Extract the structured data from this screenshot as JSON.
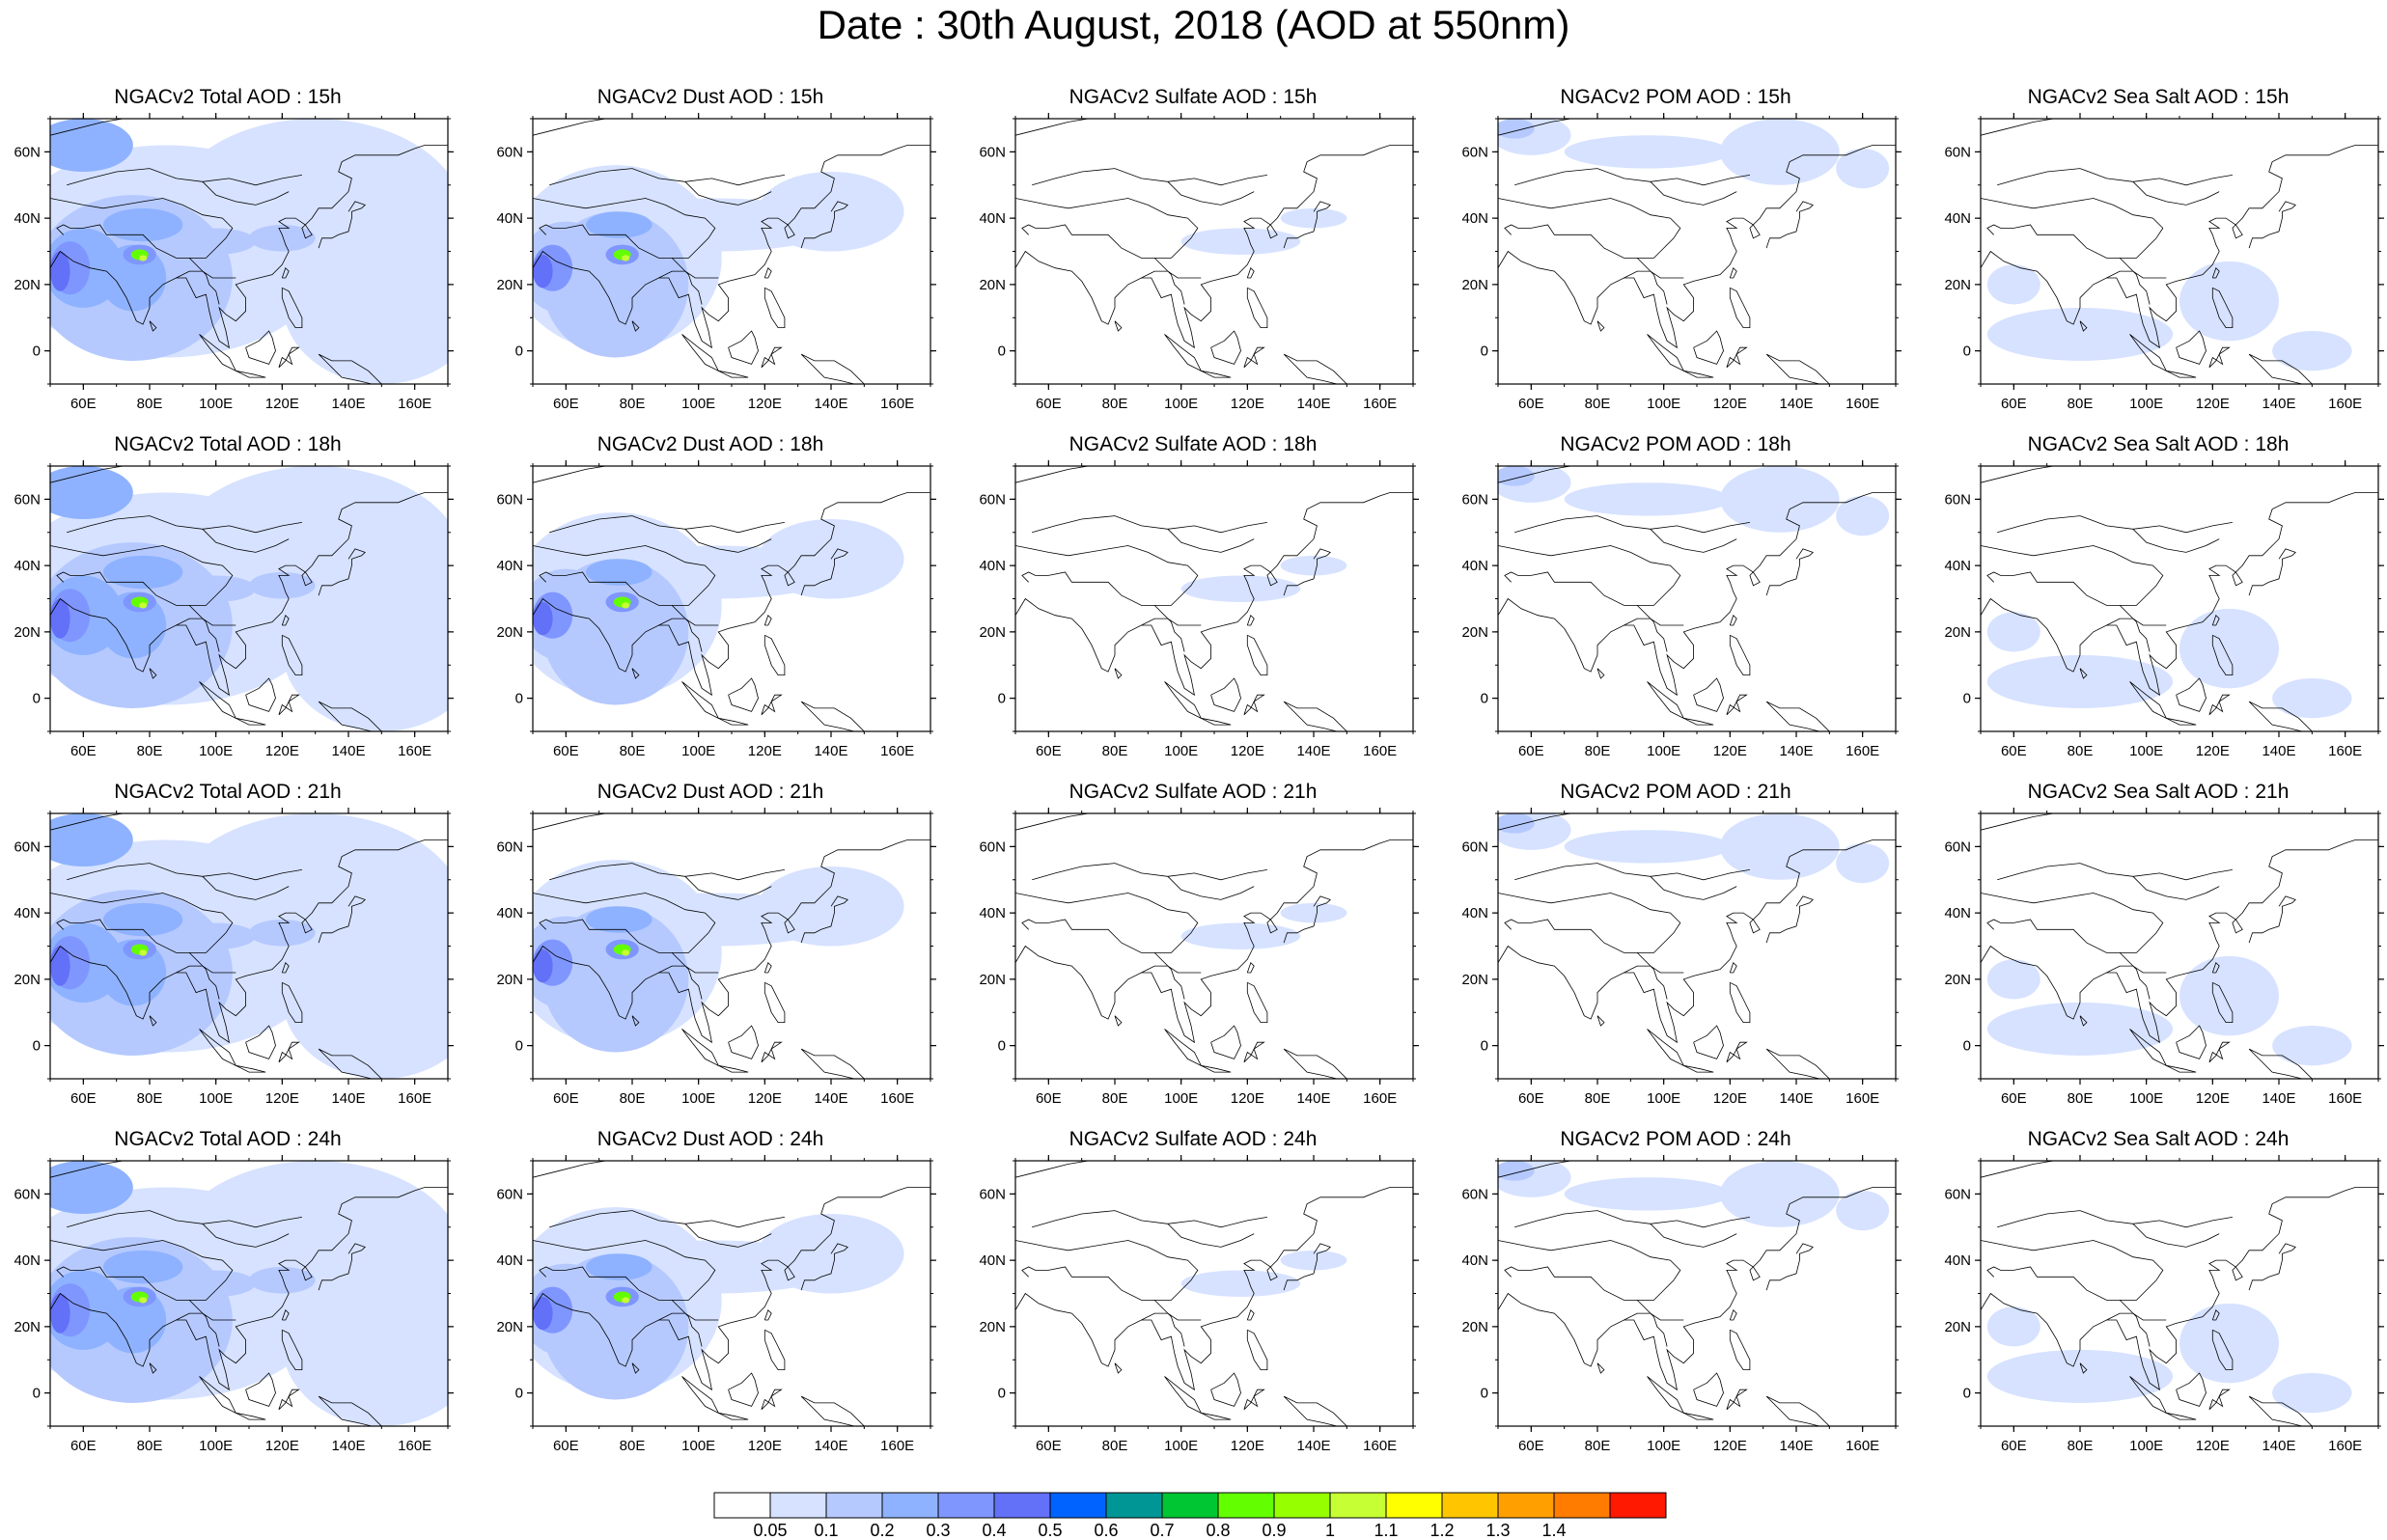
{
  "title": "Date : 30th August, 2018 (AOD at 550nm)",
  "lon_ticks": [
    60,
    80,
    100,
    120,
    140,
    160
  ],
  "lon_labels": [
    "60E",
    "80E",
    "100E",
    "120E",
    "140E",
    "160E"
  ],
  "lat_ticks": [
    60,
    40,
    20,
    0
  ],
  "lat_labels": [
    "60N",
    "40N",
    "20N",
    "0"
  ],
  "lon_range": [
    50,
    170
  ],
  "lat_range": [
    -10,
    70
  ],
  "species": [
    "total",
    "dust",
    "sulfate",
    "pom",
    "seasalt"
  ],
  "times": [
    "15h",
    "18h",
    "21h",
    "24h"
  ],
  "panel_titles": [
    [
      "NGACv2 Total AOD : 15h",
      "NGACv2 Dust AOD : 15h",
      "NGACv2 Sulfate AOD : 15h",
      "NGACv2 POM AOD : 15h",
      "NGACv2 Sea Salt AOD : 15h"
    ],
    [
      "NGACv2 Total AOD : 18h",
      "NGACv2 Dust AOD : 18h",
      "NGACv2 Sulfate AOD : 18h",
      "NGACv2 POM AOD : 18h",
      "NGACv2 Sea Salt AOD : 18h"
    ],
    [
      "NGACv2 Total AOD : 21h",
      "NGACv2 Dust AOD : 21h",
      "NGACv2 Sulfate AOD : 21h",
      "NGACv2 POM AOD : 21h",
      "NGACv2 Sea Salt AOD : 21h"
    ],
    [
      "NGACv2 Total AOD : 24h",
      "NGACv2 Dust AOD : 24h",
      "NGACv2 Sulfate AOD : 24h",
      "NGACv2 POM AOD : 24h",
      "NGACv2 Sea Salt  AOD : 24h"
    ]
  ],
  "colorbar": {
    "labels": [
      "0.05",
      "0.1",
      "0.2",
      "0.3",
      "0.4",
      "0.5",
      "0.6",
      "0.7",
      "0.8",
      "0.9",
      "1",
      "1.1",
      "1.2",
      "1.3",
      "1.4"
    ],
    "colors": [
      "#ffffff",
      "#d6e2ff",
      "#b5c9ff",
      "#8eb2ff",
      "#7f96ff",
      "#6370f8",
      "#0063ff",
      "#009696",
      "#00c633",
      "#63ff00",
      "#96ff00",
      "#c6ff33",
      "#ffff00",
      "#ffc600",
      "#ffa000",
      "#ff7c00",
      "#ff1900"
    ]
  },
  "blob_colors": [
    "#ffffff",
    "#d6e2ff",
    "#b5c9ff",
    "#8eb2ff",
    "#7f96ff",
    "#6370f8",
    "#63ff00",
    "#c6ff33"
  ],
  "fields": {
    "total": [
      {
        "lon": 85,
        "lat": 30,
        "rx": 50,
        "ry": 32,
        "level": 1
      },
      {
        "lon": 130,
        "lat": 40,
        "rx": 45,
        "ry": 30,
        "level": 1
      },
      {
        "lon": 150,
        "lat": 15,
        "rx": 30,
        "ry": 25,
        "level": 1
      },
      {
        "lon": 60,
        "lat": 62,
        "rx": 15,
        "ry": 8,
        "level": 3
      },
      {
        "lon": 75,
        "lat": 22,
        "rx": 30,
        "ry": 25,
        "level": 2
      },
      {
        "lon": 60,
        "lat": 25,
        "rx": 12,
        "ry": 12,
        "level": 3
      },
      {
        "lon": 78,
        "lat": 38,
        "rx": 12,
        "ry": 5,
        "level": 3
      },
      {
        "lon": 100,
        "lat": 33,
        "rx": 12,
        "ry": 4,
        "level": 2
      },
      {
        "lon": 120,
        "lat": 34,
        "rx": 10,
        "ry": 4,
        "level": 2
      },
      {
        "lon": 75,
        "lat": 22,
        "rx": 10,
        "ry": 10,
        "level": 3
      },
      {
        "lon": 56,
        "lat": 25,
        "rx": 6,
        "ry": 8,
        "level": 4
      },
      {
        "lon": 53,
        "lat": 24,
        "rx": 3,
        "ry": 6,
        "level": 5
      },
      {
        "lon": 77,
        "lat": 29,
        "rx": 5,
        "ry": 3,
        "level": 4
      },
      {
        "lon": 77,
        "lat": 29,
        "rx": 2.6,
        "ry": 1.6,
        "level": 6
      },
      {
        "lon": 78,
        "lat": 28,
        "rx": 1.2,
        "ry": 0.9,
        "level": 7
      }
    ],
    "dust": [
      {
        "lon": 75,
        "lat": 28,
        "rx": 32,
        "ry": 28,
        "level": 1
      },
      {
        "lon": 105,
        "lat": 38,
        "rx": 38,
        "ry": 8,
        "level": 1
      },
      {
        "lon": 140,
        "lat": 42,
        "rx": 22,
        "ry": 12,
        "level": 1
      },
      {
        "lon": 60,
        "lat": 25,
        "rx": 14,
        "ry": 14,
        "level": 2
      },
      {
        "lon": 75,
        "lat": 20,
        "rx": 22,
        "ry": 22,
        "level": 2
      },
      {
        "lon": 76,
        "lat": 38,
        "rx": 10,
        "ry": 4,
        "level": 3
      },
      {
        "lon": 56,
        "lat": 25,
        "rx": 6,
        "ry": 7,
        "level": 4
      },
      {
        "lon": 53,
        "lat": 24,
        "rx": 3,
        "ry": 5,
        "level": 5
      },
      {
        "lon": 77,
        "lat": 29,
        "rx": 5,
        "ry": 3,
        "level": 4
      },
      {
        "lon": 77,
        "lat": 29,
        "rx": 2.6,
        "ry": 1.6,
        "level": 6
      },
      {
        "lon": 78,
        "lat": 28,
        "rx": 1.2,
        "ry": 0.9,
        "level": 7
      }
    ],
    "sulfate": [
      {
        "lon": 118,
        "lat": 33,
        "rx": 18,
        "ry": 4,
        "level": 1
      },
      {
        "lon": 140,
        "lat": 40,
        "rx": 10,
        "ry": 3,
        "level": 1
      }
    ],
    "pom": [
      {
        "lon": 60,
        "lat": 65,
        "rx": 12,
        "ry": 6,
        "level": 1
      },
      {
        "lon": 55,
        "lat": 67,
        "rx": 6,
        "ry": 3,
        "level": 2
      },
      {
        "lon": 95,
        "lat": 60,
        "rx": 25,
        "ry": 5,
        "level": 1
      },
      {
        "lon": 135,
        "lat": 60,
        "rx": 18,
        "ry": 10,
        "level": 1
      },
      {
        "lon": 160,
        "lat": 55,
        "rx": 8,
        "ry": 6,
        "level": 1
      }
    ],
    "seasalt": [
      {
        "lon": 80,
        "lat": 5,
        "rx": 28,
        "ry": 8,
        "level": 1
      },
      {
        "lon": 125,
        "lat": 15,
        "rx": 15,
        "ry": 12,
        "level": 1
      },
      {
        "lon": 150,
        "lat": 0,
        "rx": 12,
        "ry": 6,
        "level": 1
      },
      {
        "lon": 60,
        "lat": 20,
        "rx": 8,
        "ry": 6,
        "level": 1
      }
    ]
  }
}
